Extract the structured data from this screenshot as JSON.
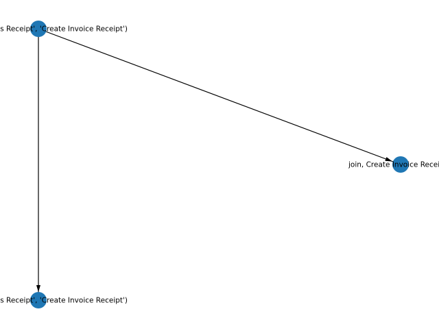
{
  "graph": {
    "nodes": [
      {
        "id": "n1",
        "label": "('Record Goods Receipt', 'Create Invoice Receipt')"
      },
      {
        "id": "n2",
        "label": "join, Create Invoice Receipt"
      },
      {
        "id": "n3",
        "label": "('Record Goods Receipt', 'Create Invoice Receipt')"
      }
    ],
    "edges": [
      {
        "from": "n1",
        "to": "n2"
      },
      {
        "from": "n1",
        "to": "n3"
      }
    ],
    "colors": {
      "node": "#1f77b4",
      "edge": "#000000",
      "label": "#000000",
      "background": "#ffffff"
    }
  }
}
